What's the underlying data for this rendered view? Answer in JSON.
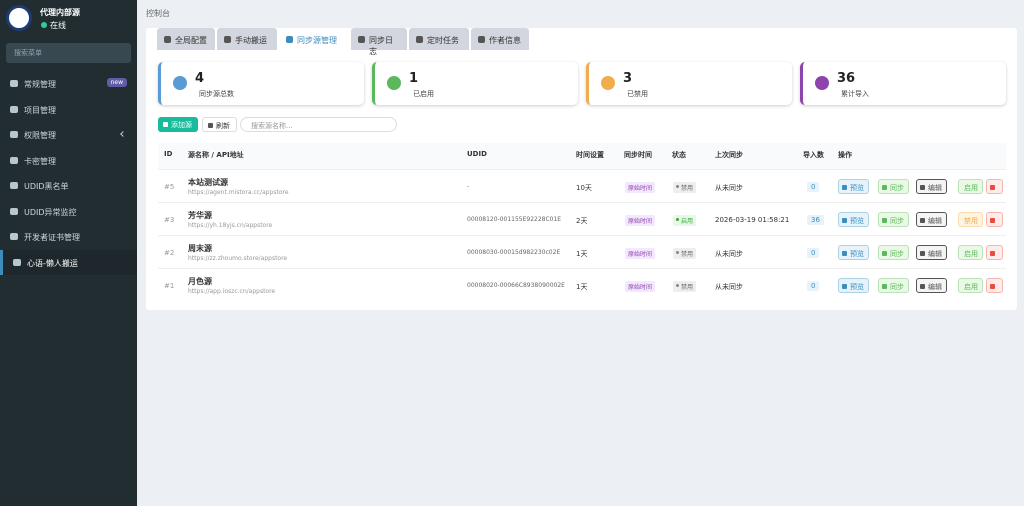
{
  "sidebar": {
    "brand": "代理内部源",
    "status": "在线",
    "search_placeholder": "搜索菜单",
    "menu": [
      {
        "label": "常规管理",
        "badge": "new"
      },
      {
        "label": "项目管理"
      },
      {
        "label": "权限管理"
      },
      {
        "label": "卡密管理"
      },
      {
        "label": "UDID黑名单"
      },
      {
        "label": "UDID异常监控"
      },
      {
        "label": "开发者证书管理"
      },
      {
        "label": "心语-懒人搬运"
      }
    ]
  },
  "breadcrumb": "控制台",
  "tabs": [
    "全局配置",
    "手动搬运",
    "同步源管理",
    "同步日志",
    "定时任务",
    "作者信息"
  ],
  "stats": [
    {
      "value": 4,
      "label": "同步源总数",
      "color": "#5b9bd5"
    },
    {
      "value": 1,
      "label": "已启用",
      "color": "#5cb85c"
    },
    {
      "value": 3,
      "label": "已禁用",
      "color": "#f0ad4e"
    },
    {
      "value": 36,
      "label": "累计导入",
      "color": "#8e44ad"
    }
  ],
  "toolbar": {
    "add": "添加源",
    "refresh": "刷新",
    "search_placeholder": "搜索源名称..."
  },
  "table": {
    "headers": [
      "ID",
      "源名称 / API地址",
      "UDID",
      "时间设置",
      "同步时间",
      "状态",
      "上次同步",
      "导入数",
      "操作"
    ],
    "rows": [
      {
        "id": "#5",
        "name": "本站测试源",
        "url": "https://agent.mistora.cc/appstore",
        "udid": "-",
        "interval": "10天",
        "sync_time": "原始时间",
        "status": "禁用",
        "status_on": false,
        "last_sync": "从未同步",
        "imports": 0,
        "actions": [
          "预览",
          "同步",
          "编辑",
          "启用"
        ]
      },
      {
        "id": "#3",
        "name": "芳华源",
        "url": "https://yh.18yjs.cn/appstore",
        "udid": "00008120-001155E92228C01E",
        "interval": "2天",
        "sync_time": "原始时间",
        "status": "启用",
        "status_on": true,
        "last_sync": "2026-03-19 01:58:21",
        "imports": 36,
        "actions": [
          "预览",
          "同步",
          "编辑",
          "禁用"
        ]
      },
      {
        "id": "#2",
        "name": "周末源",
        "url": "https://zz.zhoumo.store/appstore",
        "udid": "00008030-00015d982230c02E",
        "interval": "1天",
        "sync_time": "原始时间",
        "status": "禁用",
        "status_on": false,
        "last_sync": "从未同步",
        "imports": 0,
        "actions": [
          "预览",
          "同步",
          "编辑",
          "启用"
        ]
      },
      {
        "id": "#1",
        "name": "月色源",
        "url": "https://app.ioszc.cn/appstore",
        "udid": "00008020-00066C8938090002E",
        "interval": "1天",
        "sync_time": "原始时间",
        "status": "禁用",
        "status_on": false,
        "last_sync": "从未同步",
        "imports": 0,
        "actions": [
          "预览",
          "同步",
          "编辑",
          "启用"
        ]
      }
    ]
  }
}
